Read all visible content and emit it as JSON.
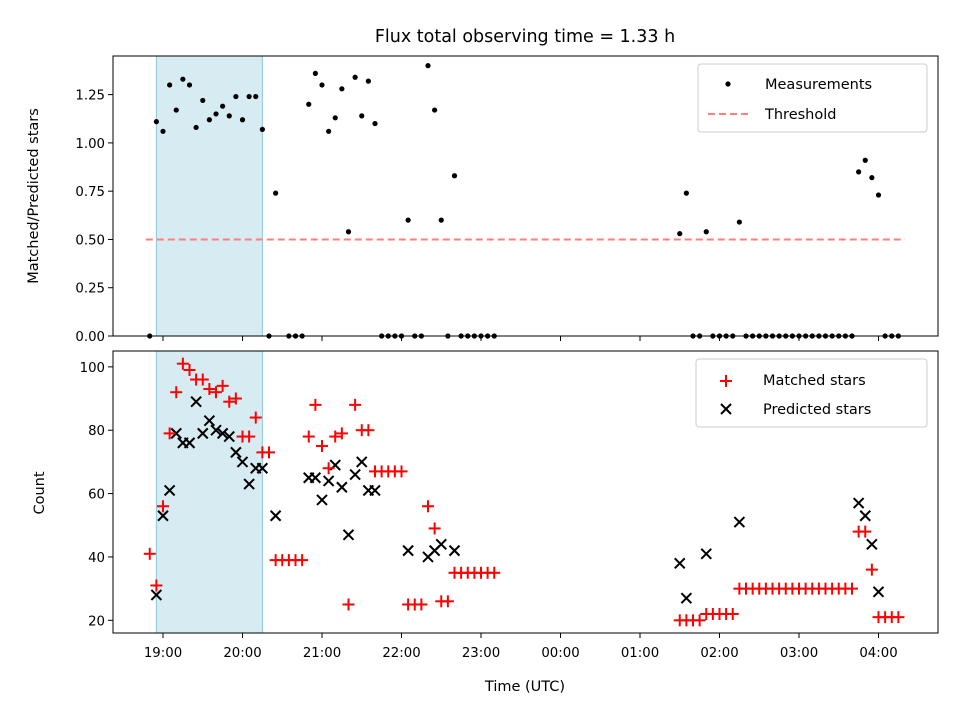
{
  "chart_data": [
    {
      "type": "scatter",
      "title": "Flux total observing time = 1.33 h",
      "ylabel": "Matched/Predicted stars",
      "xlabel": "",
      "ylim": [
        0,
        1.45
      ],
      "yticks": [
        "0.00",
        "0.25",
        "0.50",
        "0.75",
        "1.00",
        "1.25"
      ],
      "legend_position": "top-right",
      "shaded_region": {
        "x": [
          "18:55",
          "20:15"
        ],
        "color": "#add8e6"
      },
      "threshold": {
        "name": "Threshold",
        "value": 0.5,
        "x": [
          "18:47",
          "04:20"
        ],
        "color": "#ff7f7f"
      },
      "series": [
        {
          "name": "Measurements",
          "color": "#000000",
          "marker": "dot",
          "points": [
            [
              "18:50",
              0
            ],
            [
              "18:55",
              1.11
            ],
            [
              "19:00",
              1.06
            ],
            [
              "19:05",
              1.3
            ],
            [
              "19:10",
              1.17
            ],
            [
              "19:15",
              1.33
            ],
            [
              "19:20",
              1.3
            ],
            [
              "19:25",
              1.08
            ],
            [
              "19:30",
              1.22
            ],
            [
              "19:35",
              1.12
            ],
            [
              "19:40",
              1.15
            ],
            [
              "19:45",
              1.19
            ],
            [
              "19:50",
              1.14
            ],
            [
              "19:55",
              1.24
            ],
            [
              "20:00",
              1.12
            ],
            [
              "20:05",
              1.24
            ],
            [
              "20:10",
              1.24
            ],
            [
              "20:15",
              1.07
            ],
            [
              "20:20",
              0
            ],
            [
              "20:25",
              0.74
            ],
            [
              "20:35",
              0
            ],
            [
              "20:40",
              0
            ],
            [
              "20:45",
              0
            ],
            [
              "20:50",
              1.2
            ],
            [
              "20:55",
              1.36
            ],
            [
              "21:00",
              1.3
            ],
            [
              "21:05",
              1.06
            ],
            [
              "21:10",
              1.13
            ],
            [
              "21:15",
              1.28
            ],
            [
              "21:20",
              0.54
            ],
            [
              "21:25",
              1.34
            ],
            [
              "21:30",
              1.14
            ],
            [
              "21:35",
              1.32
            ],
            [
              "21:40",
              1.1
            ],
            [
              "21:45",
              0
            ],
            [
              "21:50",
              0
            ],
            [
              "21:55",
              0
            ],
            [
              "22:00",
              0
            ],
            [
              "22:05",
              0.6
            ],
            [
              "22:10",
              0
            ],
            [
              "22:15",
              0
            ],
            [
              "22:20",
              1.4
            ],
            [
              "22:25",
              1.17
            ],
            [
              "22:30",
              0.6
            ],
            [
              "22:35",
              0
            ],
            [
              "22:40",
              0.83
            ],
            [
              "22:45",
              0
            ],
            [
              "22:50",
              0
            ],
            [
              "22:55",
              0
            ],
            [
              "23:00",
              0
            ],
            [
              "23:05",
              0
            ],
            [
              "23:10",
              0
            ],
            [
              "01:30",
              0.53
            ],
            [
              "01:35",
              0.74
            ],
            [
              "01:40",
              0
            ],
            [
              "01:45",
              0
            ],
            [
              "01:50",
              0.54
            ],
            [
              "01:55",
              0
            ],
            [
              "02:00",
              0
            ],
            [
              "02:05",
              0
            ],
            [
              "02:10",
              0
            ],
            [
              "02:15",
              0.59
            ],
            [
              "02:20",
              0
            ],
            [
              "02:25",
              0
            ],
            [
              "02:30",
              0
            ],
            [
              "02:35",
              0
            ],
            [
              "02:40",
              0
            ],
            [
              "02:45",
              0
            ],
            [
              "02:50",
              0
            ],
            [
              "02:55",
              0
            ],
            [
              "03:00",
              0
            ],
            [
              "03:05",
              0
            ],
            [
              "03:10",
              0
            ],
            [
              "03:15",
              0
            ],
            [
              "03:20",
              0
            ],
            [
              "03:25",
              0
            ],
            [
              "03:30",
              0
            ],
            [
              "03:35",
              0
            ],
            [
              "03:40",
              0
            ],
            [
              "03:45",
              0.85
            ],
            [
              "03:50",
              0.91
            ],
            [
              "03:55",
              0.82
            ],
            [
              "04:00",
              0.73
            ],
            [
              "04:05",
              0
            ],
            [
              "04:10",
              0
            ],
            [
              "04:15",
              0
            ]
          ]
        }
      ]
    },
    {
      "type": "scatter",
      "xlabel": "Time (UTC)",
      "ylabel": "Count",
      "ylim": [
        16,
        105
      ],
      "yticks": [
        "20",
        "40",
        "60",
        "80",
        "100"
      ],
      "xticks": [
        "19:00",
        "20:00",
        "21:00",
        "22:00",
        "23:00",
        "00:00",
        "01:00",
        "02:00",
        "03:00",
        "04:00"
      ],
      "xlim": [
        "18:20",
        "04:35"
      ],
      "legend_position": "top-right",
      "shaded_region": {
        "x": [
          "18:55",
          "20:15"
        ],
        "color": "#add8e6"
      },
      "series": [
        {
          "name": "Matched stars",
          "color": "#ff0000",
          "marker": "plus",
          "points": [
            [
              "18:50",
              41
            ],
            [
              "18:55",
              31
            ],
            [
              "19:00",
              56
            ],
            [
              "19:05",
              79
            ],
            [
              "19:10",
              92
            ],
            [
              "19:15",
              101
            ],
            [
              "19:20",
              99
            ],
            [
              "19:25",
              96
            ],
            [
              "19:30",
              96
            ],
            [
              "19:35",
              93
            ],
            [
              "19:40",
              92
            ],
            [
              "19:45",
              94
            ],
            [
              "19:50",
              89
            ],
            [
              "19:55",
              90
            ],
            [
              "20:00",
              78
            ],
            [
              "20:05",
              78
            ],
            [
              "20:10",
              84
            ],
            [
              "20:15",
              73
            ],
            [
              "20:20",
              73
            ],
            [
              "20:25",
              39
            ],
            [
              "20:30",
              39
            ],
            [
              "20:35",
              39
            ],
            [
              "20:40",
              39
            ],
            [
              "20:45",
              39
            ],
            [
              "20:50",
              78
            ],
            [
              "20:55",
              88
            ],
            [
              "21:00",
              75
            ],
            [
              "21:05",
              68
            ],
            [
              "21:10",
              78
            ],
            [
              "21:15",
              79
            ],
            [
              "21:20",
              25
            ],
            [
              "21:25",
              88
            ],
            [
              "21:30",
              80
            ],
            [
              "21:35",
              80
            ],
            [
              "21:40",
              67
            ],
            [
              "21:45",
              67
            ],
            [
              "21:50",
              67
            ],
            [
              "21:55",
              67
            ],
            [
              "22:00",
              67
            ],
            [
              "22:05",
              25
            ],
            [
              "22:10",
              25
            ],
            [
              "22:15",
              25
            ],
            [
              "22:20",
              56
            ],
            [
              "22:25",
              49
            ],
            [
              "22:30",
              26
            ],
            [
              "22:35",
              26
            ],
            [
              "22:40",
              35
            ],
            [
              "22:45",
              35
            ],
            [
              "22:50",
              35
            ],
            [
              "22:55",
              35
            ],
            [
              "23:00",
              35
            ],
            [
              "23:05",
              35
            ],
            [
              "23:10",
              35
            ],
            [
              "01:30",
              20
            ],
            [
              "01:35",
              20
            ],
            [
              "01:40",
              20
            ],
            [
              "01:45",
              20
            ],
            [
              "01:50",
              22
            ],
            [
              "01:55",
              22
            ],
            [
              "02:00",
              22
            ],
            [
              "02:05",
              22
            ],
            [
              "02:10",
              22
            ],
            [
              "02:15",
              30
            ],
            [
              "02:20",
              30
            ],
            [
              "02:25",
              30
            ],
            [
              "02:30",
              30
            ],
            [
              "02:35",
              30
            ],
            [
              "02:40",
              30
            ],
            [
              "02:45",
              30
            ],
            [
              "02:50",
              30
            ],
            [
              "02:55",
              30
            ],
            [
              "03:00",
              30
            ],
            [
              "03:05",
              30
            ],
            [
              "03:10",
              30
            ],
            [
              "03:15",
              30
            ],
            [
              "03:20",
              30
            ],
            [
              "03:25",
              30
            ],
            [
              "03:30",
              30
            ],
            [
              "03:35",
              30
            ],
            [
              "03:40",
              30
            ],
            [
              "03:45",
              48
            ],
            [
              "03:50",
              48
            ],
            [
              "03:55",
              36
            ],
            [
              "04:00",
              21
            ],
            [
              "04:05",
              21
            ],
            [
              "04:10",
              21
            ],
            [
              "04:15",
              21
            ]
          ]
        },
        {
          "name": "Predicted stars",
          "color": "#000000",
          "marker": "x",
          "points": [
            [
              "18:55",
              28
            ],
            [
              "19:00",
              53
            ],
            [
              "19:05",
              61
            ],
            [
              "19:10",
              79
            ],
            [
              "19:15",
              76
            ],
            [
              "19:20",
              76
            ],
            [
              "19:25",
              89
            ],
            [
              "19:30",
              79
            ],
            [
              "19:35",
              83
            ],
            [
              "19:40",
              80
            ],
            [
              "19:45",
              79
            ],
            [
              "19:50",
              78
            ],
            [
              "19:55",
              73
            ],
            [
              "20:00",
              70
            ],
            [
              "20:05",
              63
            ],
            [
              "20:10",
              68
            ],
            [
              "20:15",
              68
            ],
            [
              "20:25",
              53
            ],
            [
              "20:50",
              65
            ],
            [
              "20:55",
              65
            ],
            [
              "21:00",
              58
            ],
            [
              "21:05",
              64
            ],
            [
              "21:10",
              69
            ],
            [
              "21:15",
              62
            ],
            [
              "21:20",
              47
            ],
            [
              "21:25",
              66
            ],
            [
              "21:30",
              70
            ],
            [
              "21:35",
              61
            ],
            [
              "21:40",
              61
            ],
            [
              "22:05",
              42
            ],
            [
              "22:20",
              40
            ],
            [
              "22:25",
              42
            ],
            [
              "22:30",
              44
            ],
            [
              "22:40",
              42
            ],
            [
              "01:30",
              38
            ],
            [
              "01:35",
              27
            ],
            [
              "01:50",
              41
            ],
            [
              "02:15",
              51
            ],
            [
              "03:45",
              57
            ],
            [
              "03:50",
              53
            ],
            [
              "03:55",
              44
            ],
            [
              "04:00",
              29
            ]
          ]
        }
      ]
    }
  ]
}
